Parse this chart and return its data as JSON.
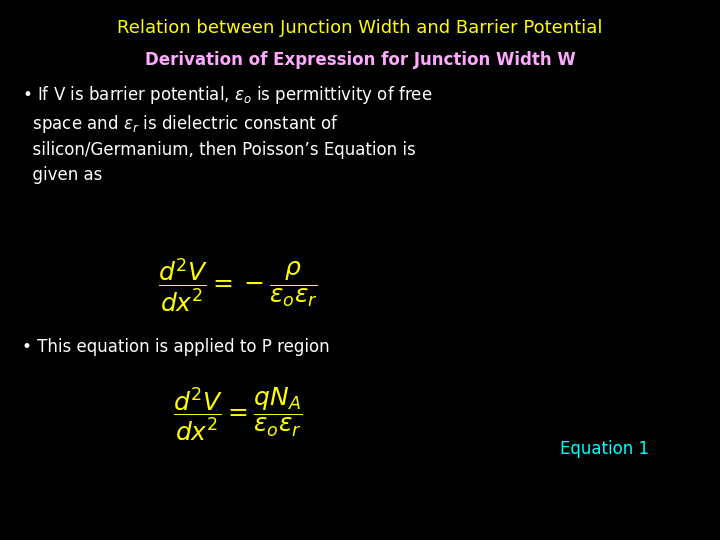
{
  "bg_color": "#000000",
  "title_text": "Relation between Junction Width and Barrier Potential",
  "title_color": "#ffff00",
  "subtitle_text": "Derivation of Expression for Junction Width W",
  "subtitle_color": "#ffaaff",
  "bullet_color": "#ffffff",
  "eq_color": "#ffff00",
  "bullet2_text": "This equation is applied to P region",
  "eq_label": "Equation 1",
  "eq_label_color": "#00ffff",
  "figsize": [
    7.2,
    5.4
  ],
  "dpi": 100,
  "title_fontsize": 13,
  "subtitle_fontsize": 12,
  "bullet_fontsize": 12,
  "eq1_fontsize": 18,
  "eq2_fontsize": 18,
  "label_fontsize": 12
}
